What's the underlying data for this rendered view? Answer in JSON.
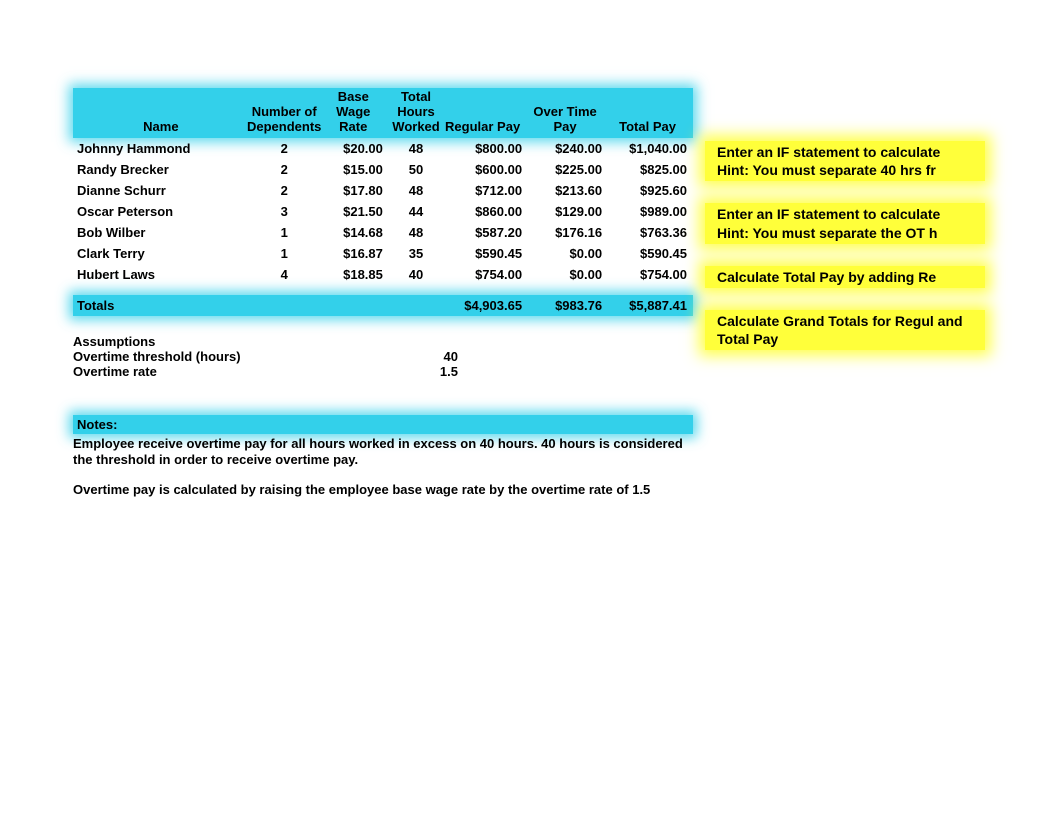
{
  "headers": {
    "name": "Name",
    "dependents": "Number of Dependents",
    "wage": "Base Wage Rate",
    "hours": "Total Hours Worked",
    "regular": "Regular Pay",
    "overtime": "Over Time Pay",
    "total": "Total Pay"
  },
  "rows": [
    {
      "name": "Johnny Hammond",
      "dep": "2",
      "wage": "$20.00",
      "hours": "48",
      "reg": "$800.00",
      "ot": "$240.00",
      "tot": "$1,040.00"
    },
    {
      "name": "Randy Brecker",
      "dep": "2",
      "wage": "$15.00",
      "hours": "50",
      "reg": "$600.00",
      "ot": "$225.00",
      "tot": "$825.00"
    },
    {
      "name": "Dianne Schurr",
      "dep": "2",
      "wage": "$17.80",
      "hours": "48",
      "reg": "$712.00",
      "ot": "$213.60",
      "tot": "$925.60"
    },
    {
      "name": "Oscar Peterson",
      "dep": "3",
      "wage": "$21.50",
      "hours": "44",
      "reg": "$860.00",
      "ot": "$129.00",
      "tot": "$989.00"
    },
    {
      "name": "Bob Wilber",
      "dep": "1",
      "wage": "$14.68",
      "hours": "48",
      "reg": "$587.20",
      "ot": "$176.16",
      "tot": "$763.36"
    },
    {
      "name": "Clark Terry",
      "dep": "1",
      "wage": "$16.87",
      "hours": "35",
      "reg": "$590.45",
      "ot": "$0.00",
      "tot": "$590.45"
    },
    {
      "name": "Hubert Laws",
      "dep": "4",
      "wage": "$18.85",
      "hours": "40",
      "reg": "$754.00",
      "ot": "$0.00",
      "tot": "$754.00"
    }
  ],
  "totals": {
    "label": "Totals",
    "reg": "$4,903.65",
    "ot": "$983.76",
    "tot": "$5,887.41"
  },
  "assumptions": {
    "title": "Assumptions",
    "threshold_label": "Overtime threshold (hours)",
    "threshold_val": "40",
    "rate_label": "Overtime rate",
    "rate_val": "1.5"
  },
  "notes": {
    "title": "Notes:",
    "line1": "Employee receive overtime pay for all hours worked in excess on 40 hours. 40 hours is considered the threshold in order to receive overtime pay.",
    "line2": "Overtime pay is calculated by raising the employee base wage rate by the overtime rate of 1.5"
  },
  "hints": {
    "h1a": "Enter an IF statement to calculate",
    "h1b": "Hint: You must separate 40 hrs fr",
    "h2a": "Enter an IF statement to calculate",
    "h2b": "Hint: You must separate the OT h",
    "h3": "Calculate Total Pay by adding Re",
    "h4": "Calculate Grand Totals for Regul and Total Pay"
  },
  "colors": {
    "highlight_cyan": "#33d0ea",
    "highlight_yellow": "#ffff3a",
    "text": "#000000",
    "background": "#ffffff"
  }
}
